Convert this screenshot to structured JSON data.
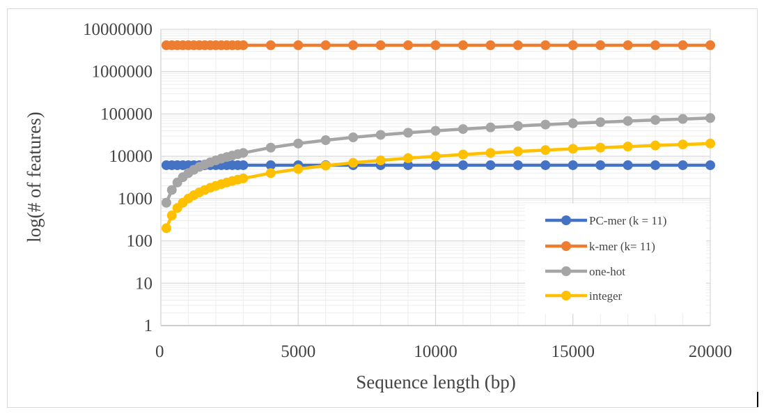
{
  "chart_data": {
    "type": "line",
    "xlabel": "Sequence length (bp)",
    "ylabel": "log(# of features)",
    "yscale": "log",
    "xlim": [
      0,
      20000
    ],
    "ylim": [
      1,
      10000000
    ],
    "x_ticks": [
      "0",
      "5000",
      "10000",
      "15000",
      "20000"
    ],
    "y_ticks": [
      "1",
      "10",
      "100",
      "1000",
      "10000",
      "100000",
      "1000000",
      "10000000"
    ],
    "grid": true,
    "legend_position": "bottom-right",
    "x": [
      200,
      400,
      600,
      800,
      1000,
      1200,
      1400,
      1600,
      1800,
      2000,
      2200,
      2400,
      2600,
      2800,
      3000,
      4000,
      5000,
      6000,
      7000,
      8000,
      9000,
      10000,
      11000,
      12000,
      13000,
      14000,
      15000,
      16000,
      17000,
      18000,
      19000,
      20000
    ],
    "series": [
      {
        "name": "PC-mer (k = 11)",
        "color": "#4472c4",
        "values": [
          6144,
          6144,
          6144,
          6144,
          6144,
          6144,
          6144,
          6144,
          6144,
          6144,
          6144,
          6144,
          6144,
          6144,
          6144,
          6144,
          6144,
          6144,
          6144,
          6144,
          6144,
          6144,
          6144,
          6144,
          6144,
          6144,
          6144,
          6144,
          6144,
          6144,
          6144,
          6144
        ]
      },
      {
        "name": "k-mer (k= 11)",
        "color": "#ed7d31",
        "values": [
          4194304,
          4194304,
          4194304,
          4194304,
          4194304,
          4194304,
          4194304,
          4194304,
          4194304,
          4194304,
          4194304,
          4194304,
          4194304,
          4194304,
          4194304,
          4194304,
          4194304,
          4194304,
          4194304,
          4194304,
          4194304,
          4194304,
          4194304,
          4194304,
          4194304,
          4194304,
          4194304,
          4194304,
          4194304,
          4194304,
          4194304,
          4194304
        ]
      },
      {
        "name": "one-hot",
        "color": "#a5a5a5",
        "values": [
          800,
          1600,
          2400,
          3200,
          4000,
          4800,
          5600,
          6400,
          7200,
          8000,
          8800,
          9600,
          10400,
          11200,
          12000,
          16000,
          20000,
          24000,
          28000,
          32000,
          36000,
          40000,
          44000,
          48000,
          52000,
          56000,
          60000,
          64000,
          68000,
          72000,
          76000,
          80000
        ]
      },
      {
        "name": "integer",
        "color": "#ffc000",
        "values": [
          200,
          400,
          600,
          800,
          1000,
          1200,
          1400,
          1600,
          1800,
          2000,
          2200,
          2400,
          2600,
          2800,
          3000,
          4000,
          5000,
          6000,
          7000,
          8000,
          9000,
          10000,
          11000,
          12000,
          13000,
          14000,
          15000,
          16000,
          17000,
          18000,
          19000,
          20000
        ]
      }
    ]
  }
}
